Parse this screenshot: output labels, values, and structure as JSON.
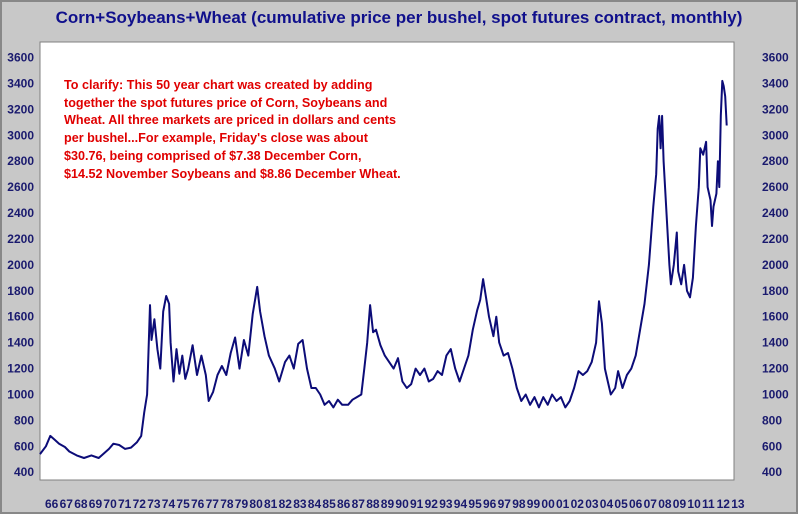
{
  "chart_data": {
    "type": "line",
    "title": "Corn+Soybeans+Wheat (cumulative price per bushel, spot futures contract, monthly)",
    "xlabel": "",
    "ylabel": "",
    "ylim": [
      340,
      3720
    ],
    "y_ticks": [
      400,
      600,
      800,
      1000,
      1200,
      1400,
      1600,
      1800,
      2000,
      2200,
      2400,
      2600,
      2800,
      3000,
      3200,
      3400,
      3600
    ],
    "y_tick_labels": [
      "400",
      "600",
      "800",
      "1000",
      "1200",
      "1400",
      "1600",
      "1800",
      "2000",
      "2200",
      "2400",
      "2600",
      "2800",
      "3000",
      "3200",
      "3400",
      "3600"
    ],
    "x_range": [
      1966,
      2013.3
    ],
    "x_tick_labels": [
      "66",
      "67",
      "68",
      "69",
      "70",
      "71",
      "72",
      "73",
      "74",
      "75",
      "76",
      "77",
      "78",
      "79",
      "80",
      "81",
      "82",
      "83",
      "84",
      "85",
      "86",
      "87",
      "88",
      "89",
      "90",
      "91",
      "92",
      "93",
      "94",
      "95",
      "96",
      "97",
      "98",
      "99",
      "00",
      "01",
      "02",
      "03",
      "04",
      "05",
      "06",
      "07",
      "08",
      "09",
      "10",
      "11",
      "12",
      "13"
    ],
    "grid": false,
    "legend": "none",
    "annotation": [
      "To clarify: This 50 year chart was created by adding",
      "together the spot futures price of Corn, Soybeans and",
      "Wheat. All three markets are priced in dollars and cents",
      "per bushel...For example, Friday's close was about",
      "$30.76, being comprised of $7.38 December Corn,",
      "$14.52 November Soybeans and $8.86 December Wheat."
    ],
    "series": [
      {
        "color": "#0c0c78",
        "points": [
          [
            1966.0,
            540
          ],
          [
            1966.4,
            600
          ],
          [
            1966.7,
            680
          ],
          [
            1967.0,
            650
          ],
          [
            1967.3,
            620
          ],
          [
            1967.7,
            595
          ],
          [
            1968.0,
            560
          ],
          [
            1968.5,
            530
          ],
          [
            1969.0,
            510
          ],
          [
            1969.5,
            530
          ],
          [
            1970.0,
            510
          ],
          [
            1970.3,
            540
          ],
          [
            1970.7,
            580
          ],
          [
            1971.0,
            620
          ],
          [
            1971.4,
            610
          ],
          [
            1971.8,
            580
          ],
          [
            1972.2,
            590
          ],
          [
            1972.6,
            630
          ],
          [
            1972.9,
            680
          ],
          [
            1973.1,
            860
          ],
          [
            1973.3,
            1000
          ],
          [
            1973.5,
            1690
          ],
          [
            1973.6,
            1420
          ],
          [
            1973.8,
            1580
          ],
          [
            1974.0,
            1350
          ],
          [
            1974.2,
            1200
          ],
          [
            1974.4,
            1640
          ],
          [
            1974.6,
            1760
          ],
          [
            1974.8,
            1700
          ],
          [
            1974.9,
            1400
          ],
          [
            1975.1,
            1100
          ],
          [
            1975.3,
            1350
          ],
          [
            1975.5,
            1160
          ],
          [
            1975.7,
            1300
          ],
          [
            1975.9,
            1120
          ],
          [
            1976.1,
            1200
          ],
          [
            1976.4,
            1380
          ],
          [
            1976.7,
            1150
          ],
          [
            1977.0,
            1300
          ],
          [
            1977.3,
            1150
          ],
          [
            1977.5,
            950
          ],
          [
            1977.8,
            1020
          ],
          [
            1978.1,
            1150
          ],
          [
            1978.4,
            1220
          ],
          [
            1978.7,
            1150
          ],
          [
            1979.0,
            1320
          ],
          [
            1979.3,
            1440
          ],
          [
            1979.6,
            1200
          ],
          [
            1979.9,
            1420
          ],
          [
            1980.2,
            1300
          ],
          [
            1980.5,
            1620
          ],
          [
            1980.8,
            1830
          ],
          [
            1981.0,
            1640
          ],
          [
            1981.3,
            1450
          ],
          [
            1981.6,
            1300
          ],
          [
            1982.0,
            1200
          ],
          [
            1982.3,
            1100
          ],
          [
            1982.7,
            1250
          ],
          [
            1983.0,
            1300
          ],
          [
            1983.3,
            1200
          ],
          [
            1983.6,
            1390
          ],
          [
            1983.9,
            1420
          ],
          [
            1984.2,
            1200
          ],
          [
            1984.5,
            1050
          ],
          [
            1984.8,
            1050
          ],
          [
            1985.1,
            1000
          ],
          [
            1985.4,
            920
          ],
          [
            1985.7,
            950
          ],
          [
            1986.0,
            900
          ],
          [
            1986.3,
            960
          ],
          [
            1986.6,
            920
          ],
          [
            1987.0,
            920
          ],
          [
            1987.3,
            960
          ],
          [
            1987.6,
            980
          ],
          [
            1987.9,
            1000
          ],
          [
            1988.1,
            1200
          ],
          [
            1988.3,
            1400
          ],
          [
            1988.5,
            1690
          ],
          [
            1988.7,
            1480
          ],
          [
            1988.9,
            1500
          ],
          [
            1989.2,
            1380
          ],
          [
            1989.5,
            1300
          ],
          [
            1989.8,
            1250
          ],
          [
            1990.1,
            1200
          ],
          [
            1990.4,
            1280
          ],
          [
            1990.7,
            1100
          ],
          [
            1991.0,
            1050
          ],
          [
            1991.3,
            1080
          ],
          [
            1991.6,
            1200
          ],
          [
            1991.9,
            1150
          ],
          [
            1992.2,
            1200
          ],
          [
            1992.5,
            1100
          ],
          [
            1992.8,
            1120
          ],
          [
            1993.1,
            1180
          ],
          [
            1993.4,
            1150
          ],
          [
            1993.7,
            1300
          ],
          [
            1994.0,
            1350
          ],
          [
            1994.3,
            1200
          ],
          [
            1994.6,
            1100
          ],
          [
            1994.9,
            1200
          ],
          [
            1995.2,
            1300
          ],
          [
            1995.5,
            1500
          ],
          [
            1995.8,
            1650
          ],
          [
            1996.0,
            1730
          ],
          [
            1996.2,
            1890
          ],
          [
            1996.4,
            1750
          ],
          [
            1996.6,
            1600
          ],
          [
            1996.9,
            1450
          ],
          [
            1997.1,
            1600
          ],
          [
            1997.3,
            1400
          ],
          [
            1997.6,
            1300
          ],
          [
            1997.9,
            1320
          ],
          [
            1998.2,
            1200
          ],
          [
            1998.5,
            1050
          ],
          [
            1998.8,
            950
          ],
          [
            1999.1,
            1000
          ],
          [
            1999.4,
            920
          ],
          [
            1999.7,
            980
          ],
          [
            2000.0,
            900
          ],
          [
            2000.3,
            980
          ],
          [
            2000.6,
            920
          ],
          [
            2000.9,
            1000
          ],
          [
            2001.2,
            950
          ],
          [
            2001.5,
            980
          ],
          [
            2001.8,
            900
          ],
          [
            2002.1,
            950
          ],
          [
            2002.4,
            1050
          ],
          [
            2002.7,
            1180
          ],
          [
            2003.0,
            1150
          ],
          [
            2003.3,
            1180
          ],
          [
            2003.6,
            1250
          ],
          [
            2003.9,
            1400
          ],
          [
            2004.1,
            1720
          ],
          [
            2004.3,
            1550
          ],
          [
            2004.5,
            1200
          ],
          [
            2004.7,
            1100
          ],
          [
            2004.9,
            1000
          ],
          [
            2005.2,
            1050
          ],
          [
            2005.4,
            1180
          ],
          [
            2005.7,
            1050
          ],
          [
            2006.0,
            1150
          ],
          [
            2006.3,
            1200
          ],
          [
            2006.6,
            1300
          ],
          [
            2006.9,
            1500
          ],
          [
            2007.2,
            1700
          ],
          [
            2007.5,
            2000
          ],
          [
            2007.8,
            2450
          ],
          [
            2008.0,
            2700
          ],
          [
            2008.1,
            3050
          ],
          [
            2008.2,
            3150
          ],
          [
            2008.3,
            2900
          ],
          [
            2008.4,
            3150
          ],
          [
            2008.5,
            2800
          ],
          [
            2008.7,
            2400
          ],
          [
            2008.9,
            2000
          ],
          [
            2009.0,
            1850
          ],
          [
            2009.2,
            2000
          ],
          [
            2009.4,
            2250
          ],
          [
            2009.5,
            1950
          ],
          [
            2009.7,
            1850
          ],
          [
            2009.9,
            2000
          ],
          [
            2010.1,
            1800
          ],
          [
            2010.3,
            1750
          ],
          [
            2010.5,
            1900
          ],
          [
            2010.7,
            2300
          ],
          [
            2010.9,
            2600
          ],
          [
            2011.0,
            2900
          ],
          [
            2011.2,
            2850
          ],
          [
            2011.4,
            2950
          ],
          [
            2011.5,
            2600
          ],
          [
            2011.7,
            2500
          ],
          [
            2011.8,
            2300
          ],
          [
            2011.9,
            2450
          ],
          [
            2012.1,
            2550
          ],
          [
            2012.2,
            2800
          ],
          [
            2012.3,
            2600
          ],
          [
            2012.4,
            3150
          ],
          [
            2012.5,
            3420
          ],
          [
            2012.6,
            3380
          ],
          [
            2012.7,
            3300
          ],
          [
            2012.8,
            3076
          ]
        ]
      }
    ]
  }
}
